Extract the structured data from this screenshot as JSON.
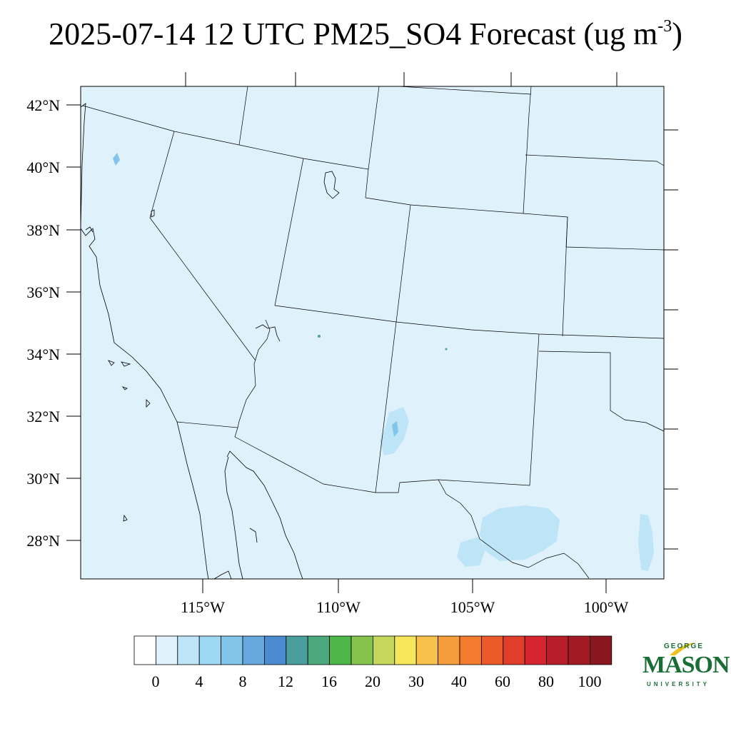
{
  "title": {
    "text": "2025-07-14 12 UTC PM25_SO4 Forecast (ug m",
    "sup": "-3",
    "close": ")"
  },
  "map": {
    "background_color": "#dff1fb",
    "lat_labels": [
      "42°N",
      "40°N",
      "38°N",
      "36°N",
      "34°N",
      "32°N",
      "30°N",
      "28°N"
    ],
    "lon_labels": [
      "115°W",
      "110°W",
      "105°W",
      "100°W"
    ]
  },
  "colorbar": {
    "colors": [
      "#ffffff",
      "#dff1fb",
      "#bde5f7",
      "#9dd8f3",
      "#82c4ea",
      "#67a9de",
      "#4a8ccf",
      "#4b9e9e",
      "#4aa87a",
      "#4db74a",
      "#86c34c",
      "#c4d75a",
      "#f6e65a",
      "#f8c24a",
      "#f59d3a",
      "#f27b2d",
      "#ec5a2a",
      "#e03d2a",
      "#d42530",
      "#b81e2a",
      "#a21a24",
      "#8a161f"
    ],
    "labels": [
      "0",
      "4",
      "8",
      "12",
      "16",
      "20",
      "30",
      "40",
      "60",
      "80",
      "100"
    ]
  },
  "logo": {
    "line1": "GEORGE",
    "line2": "MASON",
    "line3": "UNIVERSITY",
    "color": "#1a6e35",
    "accent": "#f0c020"
  }
}
